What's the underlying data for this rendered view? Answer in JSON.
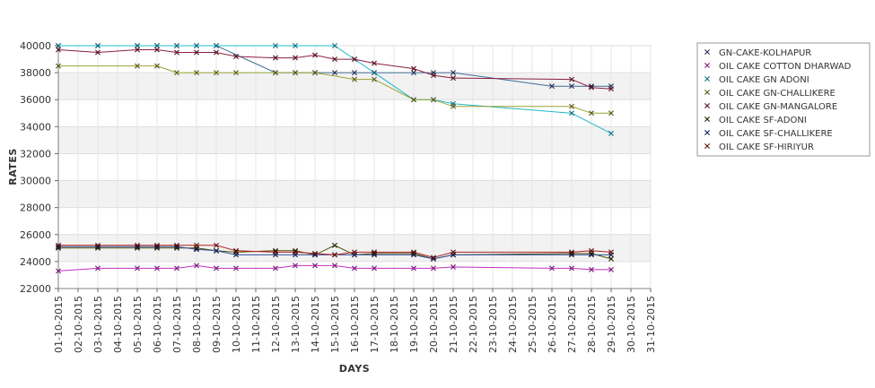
{
  "chart_data": {
    "type": "line",
    "title": "",
    "xlabel": "DAYS",
    "ylabel": "RATES",
    "ylim": [
      22000,
      40000
    ],
    "y_ticks": [
      22000,
      24000,
      26000,
      28000,
      30000,
      32000,
      34000,
      36000,
      38000,
      40000
    ],
    "y_tick_labels": [
      "22000",
      "24000",
      "26000",
      "28000",
      "30000",
      "32000",
      "34000",
      "36000",
      "38000",
      "40000"
    ],
    "x_labels": [
      "01-10-2015",
      "02-10-2015",
      "03-10-2015",
      "04-10-2015",
      "05-10-2015",
      "06-10-2015",
      "07-10-2015",
      "08-10-2015",
      "09-10-2015",
      "10-10-2015",
      "11-10-2015",
      "12-10-2015",
      "13-10-2015",
      "14-10-2015",
      "15-10-2015",
      "16-10-2015",
      "17-10-2015",
      "18-10-2015",
      "19-10-2015",
      "20-10-2015",
      "21-10-2015",
      "22-10-2015",
      "23-10-2015",
      "24-10-2015",
      "25-10-2015",
      "26-10-2015",
      "27-10-2015",
      "28-10-2015",
      "29-10-2015",
      "30-10-2015",
      "31-10-2015"
    ],
    "grid": true,
    "alternating_bands": true,
    "legend_position": "right",
    "series": [
      {
        "name": "GN-CAKE-KOLHAPUR",
        "color": "#3c6e96",
        "marker_color": "#2b2b55",
        "points": [
          [
            1,
            40000
          ],
          [
            3,
            40000
          ],
          [
            5,
            40000
          ],
          [
            6,
            40000
          ],
          [
            7,
            40000
          ],
          [
            8,
            40000
          ],
          [
            9,
            40000
          ],
          [
            12,
            38000
          ],
          [
            13,
            38000
          ],
          [
            14,
            38000
          ],
          [
            15,
            38000
          ],
          [
            16,
            38000
          ],
          [
            17,
            38000
          ],
          [
            19,
            38000
          ],
          [
            20,
            38000
          ],
          [
            21,
            38000
          ],
          [
            26,
            37000
          ],
          [
            27,
            37000
          ],
          [
            28,
            37000
          ],
          [
            29,
            37000
          ]
        ]
      },
      {
        "name": "OIL CAKE COTTON DHARWAD",
        "color": "#c030c0",
        "marker_color": "#7a1a7a",
        "points": [
          [
            1,
            23300
          ],
          [
            3,
            23500
          ],
          [
            5,
            23500
          ],
          [
            6,
            23500
          ],
          [
            7,
            23500
          ],
          [
            8,
            23700
          ],
          [
            9,
            23500
          ],
          [
            10,
            23500
          ],
          [
            12,
            23500
          ],
          [
            13,
            23700
          ],
          [
            14,
            23700
          ],
          [
            15,
            23700
          ],
          [
            16,
            23500
          ],
          [
            17,
            23500
          ],
          [
            19,
            23500
          ],
          [
            20,
            23500
          ],
          [
            21,
            23600
          ],
          [
            26,
            23500
          ],
          [
            27,
            23500
          ],
          [
            28,
            23400
          ],
          [
            29,
            23400
          ]
        ]
      },
      {
        "name": "OIL CAKE GN ADONI",
        "color": "#20b8c8",
        "marker_color": "#0f7080",
        "points": [
          [
            1,
            40000
          ],
          [
            3,
            40000
          ],
          [
            5,
            40000
          ],
          [
            6,
            40000
          ],
          [
            7,
            40000
          ],
          [
            8,
            40000
          ],
          [
            9,
            40000
          ],
          [
            12,
            40000
          ],
          [
            13,
            40000
          ],
          [
            15,
            40000
          ],
          [
            16,
            39000
          ],
          [
            17,
            38000
          ],
          [
            19,
            36000
          ],
          [
            20,
            36000
          ],
          [
            21,
            35700
          ],
          [
            27,
            35000
          ],
          [
            29,
            33500
          ]
        ]
      },
      {
        "name": "OIL CAKE GN-CHALLIKERE",
        "color": "#9aa232",
        "marker_color": "#5a5a18",
        "points": [
          [
            1,
            38500
          ],
          [
            5,
            38500
          ],
          [
            6,
            38500
          ],
          [
            7,
            38000
          ],
          [
            8,
            38000
          ],
          [
            9,
            38000
          ],
          [
            10,
            38000
          ],
          [
            12,
            38000
          ],
          [
            13,
            38000
          ],
          [
            14,
            38000
          ],
          [
            16,
            37500
          ],
          [
            17,
            37500
          ],
          [
            19,
            36000
          ],
          [
            20,
            36000
          ],
          [
            21,
            35500
          ],
          [
            27,
            35500
          ],
          [
            28,
            35000
          ],
          [
            29,
            35000
          ]
        ]
      },
      {
        "name": "OIL CAKE GN-MANGALORE",
        "color": "#8a2040",
        "marker_color": "#551020",
        "points": [
          [
            1,
            39700
          ],
          [
            3,
            39500
          ],
          [
            5,
            39700
          ],
          [
            6,
            39700
          ],
          [
            7,
            39500
          ],
          [
            8,
            39500
          ],
          [
            9,
            39500
          ],
          [
            10,
            39200
          ],
          [
            12,
            39100
          ],
          [
            13,
            39100
          ],
          [
            14,
            39300
          ],
          [
            15,
            39000
          ],
          [
            16,
            39000
          ],
          [
            17,
            38700
          ],
          [
            19,
            38300
          ],
          [
            20,
            37800
          ],
          [
            21,
            37600
          ],
          [
            27,
            37500
          ],
          [
            28,
            36900
          ],
          [
            29,
            36800
          ]
        ]
      },
      {
        "name": "OIL CAKE SF-ADONI",
        "color": "#505000",
        "marker_color": "#202000",
        "points": [
          [
            1,
            25000
          ],
          [
            3,
            25000
          ],
          [
            5,
            25000
          ],
          [
            6,
            25000
          ],
          [
            7,
            25000
          ],
          [
            8,
            25000
          ],
          [
            9,
            24800
          ],
          [
            10,
            24700
          ],
          [
            12,
            24800
          ],
          [
            13,
            24800
          ],
          [
            14,
            24500
          ],
          [
            15,
            25200
          ],
          [
            16,
            24500
          ],
          [
            17,
            24600
          ],
          [
            19,
            24600
          ],
          [
            20,
            24200
          ],
          [
            21,
            24500
          ],
          [
            27,
            24600
          ],
          [
            28,
            24600
          ],
          [
            29,
            24200
          ]
        ]
      },
      {
        "name": "OIL CAKE SF-CHALLIKERE",
        "color": "#3050a0",
        "marker_color": "#101e55",
        "points": [
          [
            1,
            25100
          ],
          [
            3,
            25100
          ],
          [
            5,
            25100
          ],
          [
            6,
            25100
          ],
          [
            7,
            25100
          ],
          [
            8,
            24900
          ],
          [
            9,
            24800
          ],
          [
            10,
            24500
          ],
          [
            12,
            24500
          ],
          [
            13,
            24500
          ],
          [
            14,
            24500
          ],
          [
            15,
            24500
          ],
          [
            16,
            24500
          ],
          [
            17,
            24500
          ],
          [
            19,
            24500
          ],
          [
            20,
            24200
          ],
          [
            21,
            24500
          ],
          [
            27,
            24500
          ],
          [
            28,
            24500
          ],
          [
            29,
            24500
          ]
        ]
      },
      {
        "name": "OIL CAKE SF-HIRIYUR",
        "color": "#b02020",
        "marker_color": "#601010",
        "points": [
          [
            1,
            25200
          ],
          [
            3,
            25200
          ],
          [
            5,
            25200
          ],
          [
            6,
            25200
          ],
          [
            7,
            25200
          ],
          [
            8,
            25200
          ],
          [
            9,
            25200
          ],
          [
            10,
            24800
          ],
          [
            12,
            24700
          ],
          [
            13,
            24700
          ],
          [
            14,
            24600
          ],
          [
            15,
            24500
          ],
          [
            16,
            24700
          ],
          [
            17,
            24700
          ],
          [
            19,
            24700
          ],
          [
            20,
            24300
          ],
          [
            21,
            24700
          ],
          [
            27,
            24700
          ],
          [
            28,
            24800
          ],
          [
            29,
            24700
          ]
        ]
      }
    ]
  }
}
